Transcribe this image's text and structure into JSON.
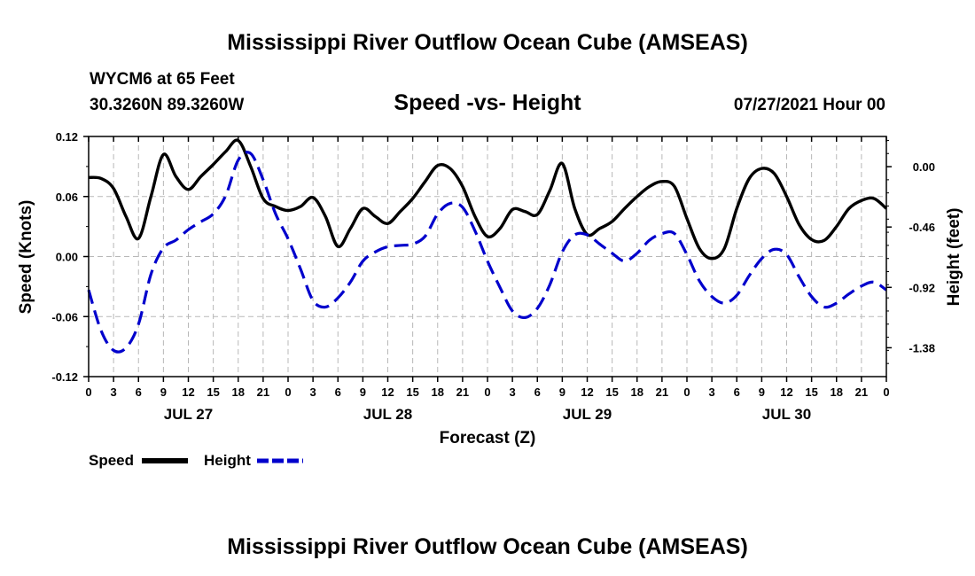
{
  "chart_data": {
    "type": "line",
    "title": "Mississippi River Outflow Ocean Cube (AMSEAS)",
    "footer_title": "Mississippi River Outflow Ocean Cube (AMSEAS)",
    "station": "WYCM6 at 65 Feet",
    "location": "30.3260N  89.3260W",
    "subtitle": "Speed -vs- Height",
    "datetime": "07/27/2021 Hour 00",
    "xlabel": "Forecast (Z)",
    "ylabel_left": "Speed (Knots)",
    "ylabel_right": "Height (feet)",
    "x_range": [
      0,
      96
    ],
    "ylim_left": [
      -0.12,
      0.12
    ],
    "ylim_right": [
      -1.6,
      0.23
    ],
    "yticks_left": [
      0.12,
      0.06,
      0.0,
      -0.06,
      -0.12
    ],
    "yticks_left_labels": [
      "0.12",
      "0.06",
      "0.00",
      "-0.06",
      "-0.12"
    ],
    "yticks_right": [
      0.0,
      -0.46,
      -0.92,
      -1.38
    ],
    "yticks_right_labels": [
      "0.00",
      "-0.46",
      "-0.92",
      "-1.38"
    ],
    "xticks": [
      0,
      3,
      6,
      9,
      12,
      15,
      18,
      21,
      24,
      27,
      30,
      33,
      36,
      39,
      42,
      45,
      48,
      51,
      54,
      57,
      60,
      63,
      66,
      69,
      72,
      75,
      78,
      81,
      84,
      87,
      90,
      93,
      96
    ],
    "xtick_labels": [
      "0",
      "3",
      "6",
      "9",
      "12",
      "15",
      "18",
      "21",
      "0",
      "3",
      "6",
      "9",
      "12",
      "15",
      "18",
      "21",
      "0",
      "3",
      "6",
      "9",
      "12",
      "15",
      "18",
      "21",
      "0",
      "3",
      "6",
      "9",
      "12",
      "15",
      "18",
      "21",
      "0"
    ],
    "dates": [
      {
        "label": "JUL 27",
        "x": 12
      },
      {
        "label": "JUL 28",
        "x": 36
      },
      {
        "label": "JUL 29",
        "x": 60
      },
      {
        "label": "JUL 30",
        "x": 84
      }
    ],
    "grid": true,
    "legend_position": "bottom-left",
    "series": [
      {
        "name": "Speed",
        "axis": "left",
        "style": "solid",
        "color": "#000000",
        "x": [
          0,
          1.5,
          3,
          4.5,
          6,
          7.5,
          9,
          10.5,
          12,
          13.5,
          15,
          16.5,
          18,
          19.5,
          21,
          22.5,
          24,
          25.5,
          27,
          28.5,
          30,
          31.5,
          33,
          34.5,
          36,
          37.5,
          39,
          40.5,
          42,
          43.5,
          45,
          46.5,
          48,
          49.5,
          51,
          52.5,
          54,
          55.5,
          57,
          58.5,
          60,
          61.5,
          63,
          64.5,
          66,
          67.5,
          69,
          70.5,
          72,
          73.5,
          75,
          76.5,
          78,
          79.5,
          81,
          82.5,
          84,
          85.5,
          87,
          88.5,
          90,
          91.5,
          93,
          94.5,
          96
        ],
        "values": [
          0.079,
          0.078,
          0.068,
          0.04,
          0.018,
          0.06,
          0.102,
          0.08,
          0.067,
          0.08,
          0.092,
          0.105,
          0.116,
          0.09,
          0.058,
          0.05,
          0.046,
          0.05,
          0.059,
          0.04,
          0.01,
          0.028,
          0.048,
          0.04,
          0.033,
          0.045,
          0.058,
          0.075,
          0.091,
          0.088,
          0.07,
          0.04,
          0.02,
          0.028,
          0.047,
          0.045,
          0.042,
          0.066,
          0.093,
          0.048,
          0.022,
          0.028,
          0.035,
          0.048,
          0.06,
          0.07,
          0.075,
          0.07,
          0.038,
          0.008,
          -0.002,
          0.008,
          0.048,
          0.078,
          0.088,
          0.083,
          0.06,
          0.032,
          0.017,
          0.016,
          0.03,
          0.048,
          0.056,
          0.058,
          0.048
        ]
      },
      {
        "name": "Height",
        "axis": "right",
        "style": "dashed",
        "color": "#0000cc",
        "x": [
          0,
          1.5,
          3,
          4.5,
          6,
          7.5,
          9,
          10.5,
          12,
          13.5,
          15,
          16.5,
          18,
          19.5,
          21,
          22.5,
          24,
          25.5,
          27,
          28.5,
          30,
          31.5,
          33,
          34.5,
          36,
          37.5,
          39,
          40.5,
          42,
          43.5,
          45,
          46.5,
          48,
          49.5,
          51,
          52.5,
          54,
          55.5,
          57,
          58.5,
          60,
          61.5,
          63,
          64.5,
          66,
          67.5,
          69,
          70.5,
          72,
          73.5,
          75,
          76.5,
          78,
          79.5,
          81,
          82.5,
          84,
          85.5,
          87,
          88.5,
          90,
          91.5,
          93,
          94.5,
          96
        ],
        "values": [
          -0.94,
          -1.25,
          -1.4,
          -1.38,
          -1.2,
          -0.82,
          -0.62,
          -0.56,
          -0.48,
          -0.42,
          -0.36,
          -0.22,
          0.05,
          0.1,
          -0.1,
          -0.36,
          -0.55,
          -0.78,
          -1.02,
          -1.07,
          -1.0,
          -0.88,
          -0.72,
          -0.65,
          -0.61,
          -0.6,
          -0.59,
          -0.53,
          -0.36,
          -0.28,
          -0.31,
          -0.49,
          -0.72,
          -0.92,
          -1.1,
          -1.15,
          -1.08,
          -0.9,
          -0.65,
          -0.52,
          -0.52,
          -0.59,
          -0.66,
          -0.72,
          -0.66,
          -0.56,
          -0.51,
          -0.51,
          -0.67,
          -0.87,
          -0.99,
          -1.04,
          -0.98,
          -0.83,
          -0.7,
          -0.63,
          -0.67,
          -0.84,
          -0.99,
          -1.07,
          -1.04,
          -0.97,
          -0.91,
          -0.88,
          -0.94
        ]
      }
    ]
  },
  "legend": {
    "speed_label": "Speed",
    "height_label": "Height"
  }
}
